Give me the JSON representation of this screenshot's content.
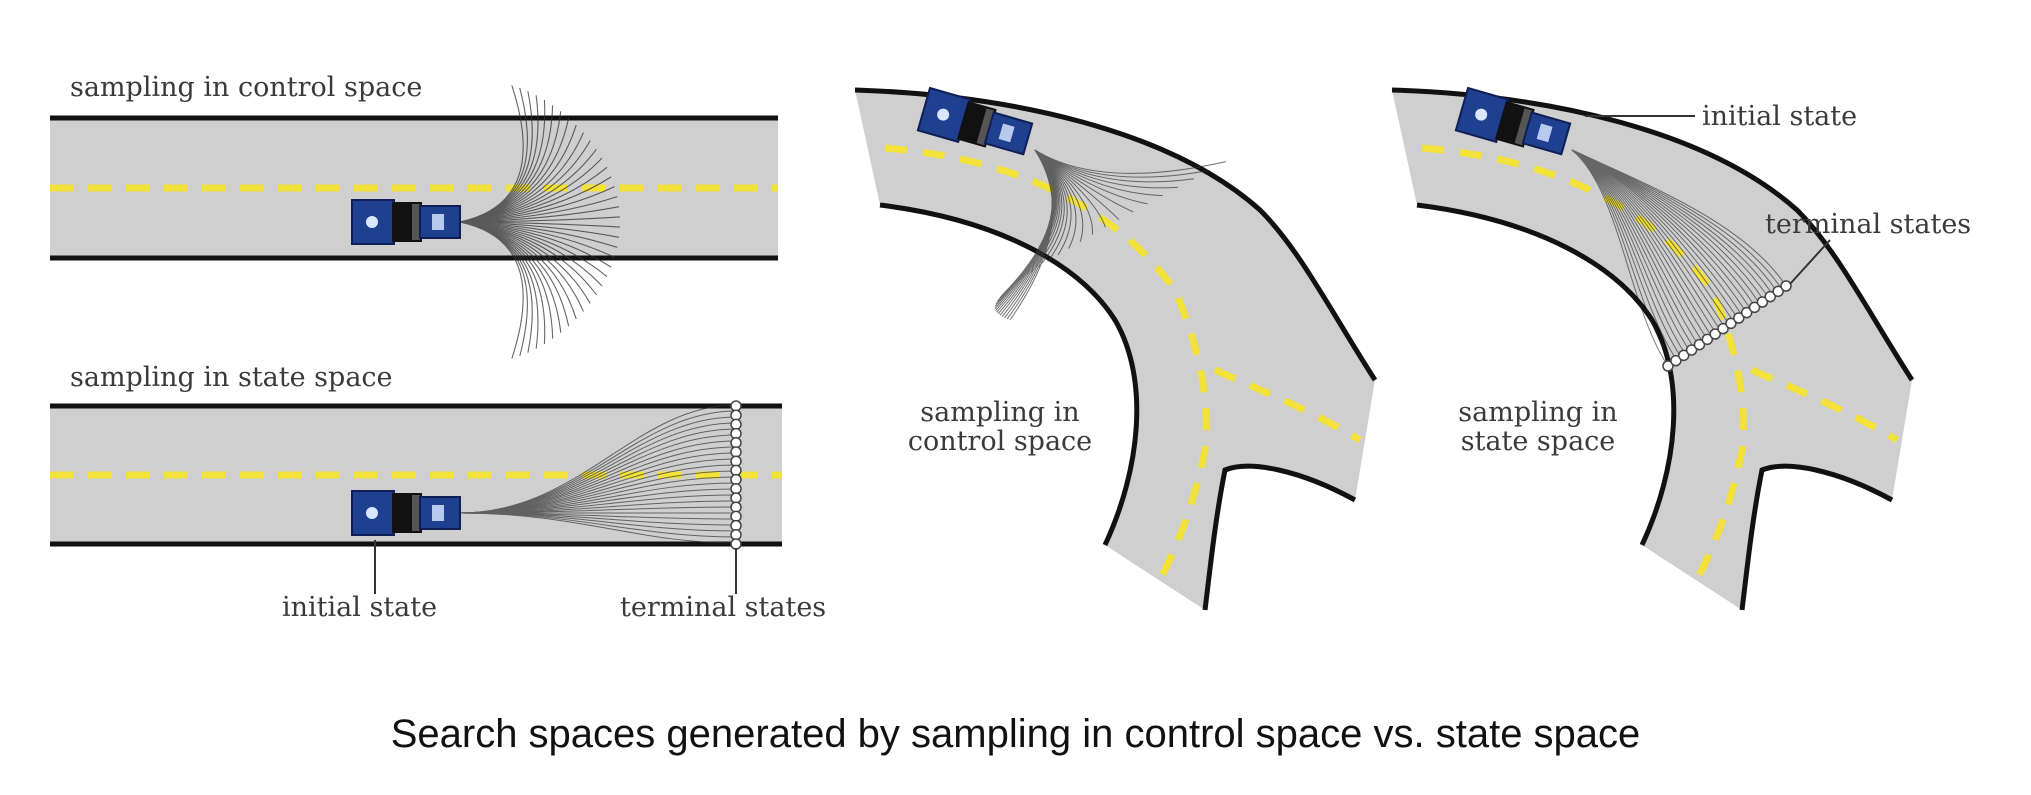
{
  "caption": "Search spaces generated by sampling in control space vs. state space",
  "labels": {
    "top_left": "sampling in control space",
    "bottom_left": "sampling in state space",
    "initial_state": "initial state",
    "terminal_states": "terminal states",
    "curve_control_line1": "sampling in",
    "curve_control_line2": "control space",
    "curve_state_line1": "sampling in",
    "curve_state_line2": "state space",
    "curve_initial_state": "initial state",
    "curve_terminal_states": "terminal states"
  },
  "colors": {
    "road": "#cfcfcf",
    "road_edge": "#111111",
    "lane_marking": "#f2e23a",
    "car_body": "#1f3f8f",
    "car_dark": "#111111",
    "trajectory": "#333333"
  },
  "icons": [
    "car-icon"
  ]
}
